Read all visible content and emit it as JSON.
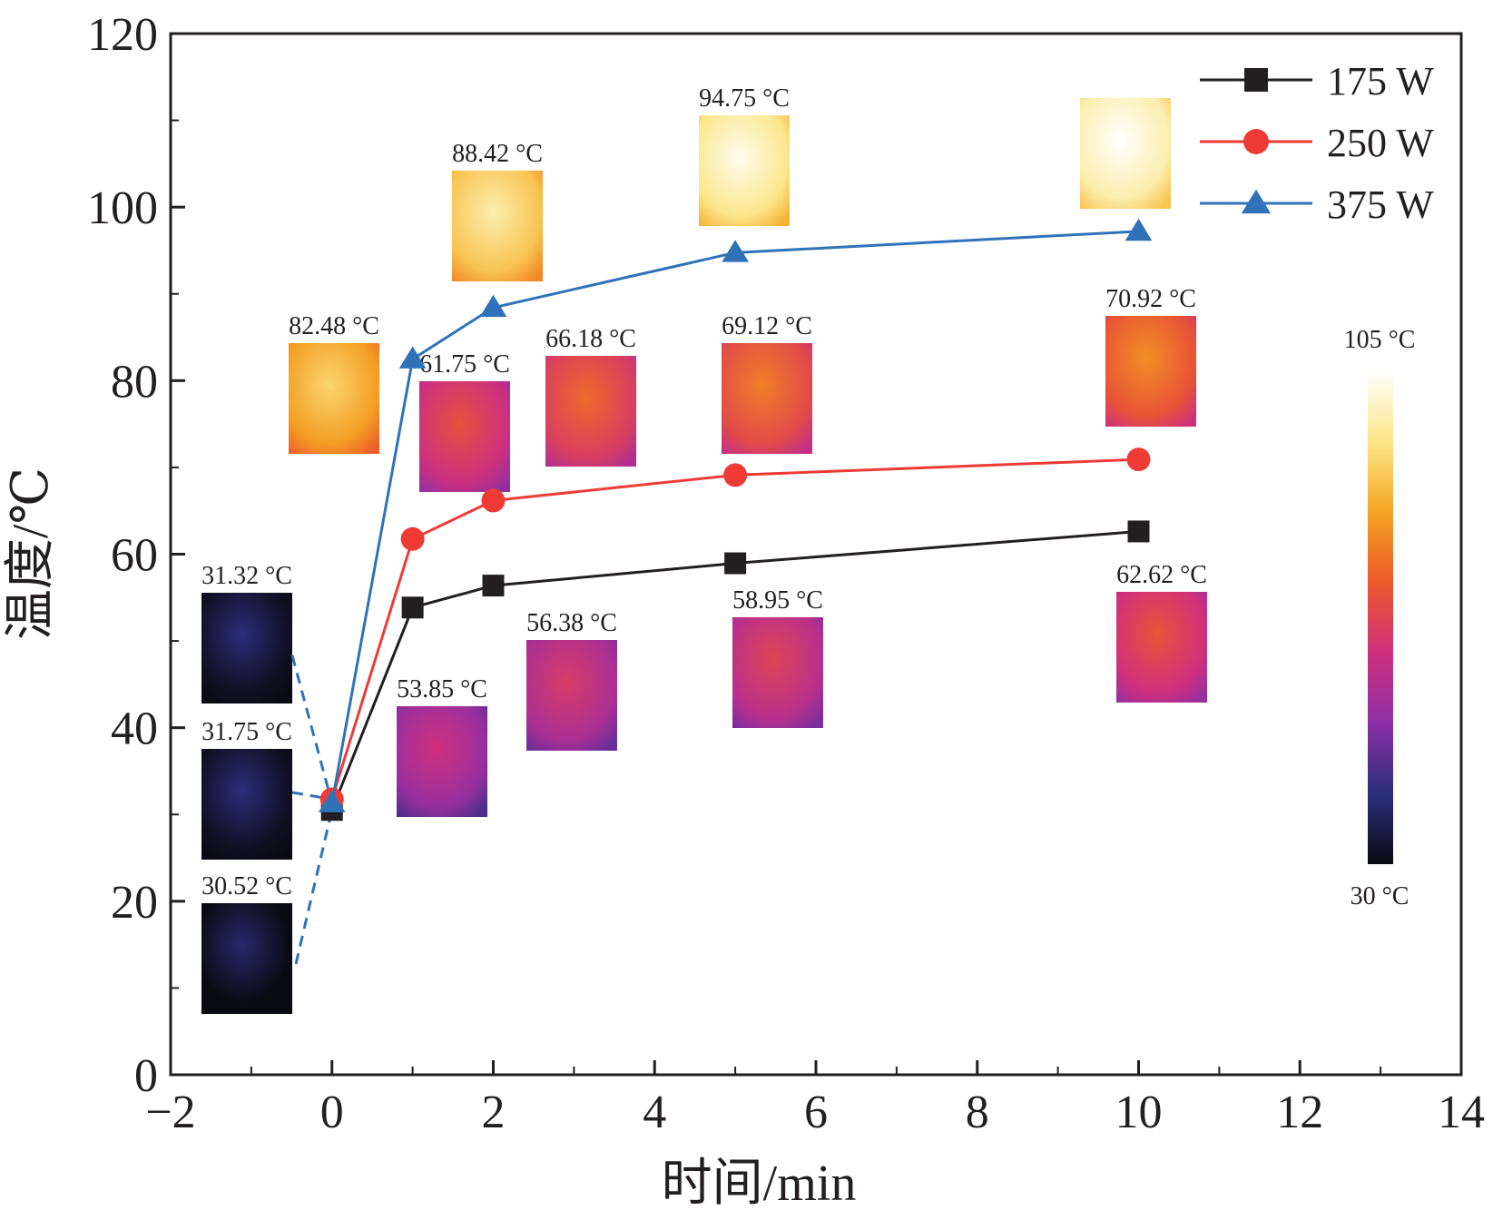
{
  "chart_data": {
    "type": "line",
    "xlabel": "时间/min",
    "ylabel": "温度/℃",
    "xlim": [
      -2,
      14
    ],
    "ylim": [
      0,
      120
    ],
    "xticks": [
      -2,
      0,
      2,
      4,
      6,
      8,
      10,
      12,
      14
    ],
    "xtick_labels": [
      "−2",
      "0",
      "2",
      "4",
      "6",
      "8",
      "10",
      "12",
      "14"
    ],
    "yticks": [
      0,
      20,
      40,
      60,
      80,
      100,
      120
    ],
    "ytick_labels": [
      "0",
      "20",
      "40",
      "60",
      "80",
      "100",
      "120"
    ],
    "grid": false,
    "legend_position": "top-right",
    "series": [
      {
        "name": "175 W",
        "color": "#231f20",
        "marker": "square",
        "x": [
          0,
          1,
          2,
          5,
          10
        ],
        "y": [
          30.52,
          53.85,
          56.38,
          58.95,
          62.62
        ]
      },
      {
        "name": "250 W",
        "color": "#ee3b36",
        "marker": "circle",
        "x": [
          0,
          1,
          2,
          5,
          10
        ],
        "y": [
          31.75,
          61.75,
          66.18,
          69.12,
          70.92
        ]
      },
      {
        "name": "375 W",
        "color": "#2f72b8",
        "marker": "triangle",
        "x": [
          0,
          1,
          2,
          5,
          10
        ],
        "y": [
          31.32,
          82.48,
          88.42,
          94.75,
          97.2
        ]
      }
    ],
    "thermal_images": [
      {
        "label": "31.32 °C",
        "series": "375 W",
        "level": 0.02
      },
      {
        "label": "31.75 °C",
        "series": "250 W",
        "level": 0.02
      },
      {
        "label": "30.52 °C",
        "series": "175 W",
        "level": 0.0
      },
      {
        "label": "82.48 °C",
        "series": "375 W",
        "level": 0.7
      },
      {
        "label": "88.42 °C",
        "series": "375 W",
        "level": 0.78
      },
      {
        "label": "94.75 °C",
        "series": "375 W",
        "level": 0.86
      },
      {
        "label": "",
        "series": "375 W",
        "level": 0.9
      },
      {
        "label": "61.75 °C",
        "series": "250 W",
        "level": 0.42
      },
      {
        "label": "66.18 °C",
        "series": "250 W",
        "level": 0.48
      },
      {
        "label": "69.12 °C",
        "series": "250 W",
        "level": 0.52
      },
      {
        "label": "70.92 °C",
        "series": "250 W",
        "level": 0.55
      },
      {
        "label": "53.85 °C",
        "series": "175 W",
        "level": 0.31
      },
      {
        "label": "56.38 °C",
        "series": "175 W",
        "level": 0.35
      },
      {
        "label": "58.95 °C",
        "series": "175 W",
        "level": 0.38
      },
      {
        "label": "62.62 °C",
        "series": "175 W",
        "level": 0.43
      }
    ],
    "color_scale": {
      "max_label": "105 °C",
      "min_label": "30 °C",
      "stops": [
        "#0a0a12",
        "#2b2f7c",
        "#8d2fa6",
        "#d0307d",
        "#ec5a2a",
        "#f5a623",
        "#fbe78a",
        "#ffffff"
      ]
    }
  }
}
